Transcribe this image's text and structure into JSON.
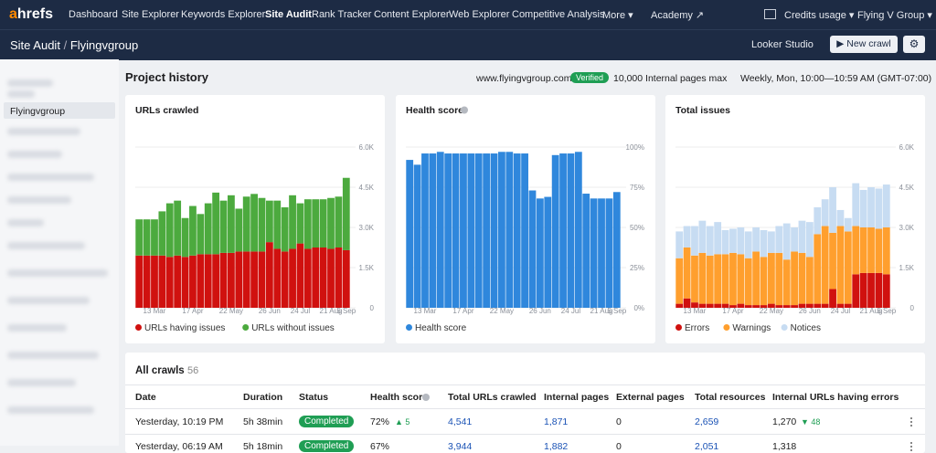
{
  "nav": {
    "logo_a": "a",
    "logo_rest": "hrefs",
    "items": [
      "Dashboard",
      "Site Explorer",
      "Keywords Explorer",
      "Site Audit",
      "Rank Tracker",
      "Content Explorer",
      "Web Explorer",
      "Competitive Analysis",
      "More ▾",
      "Academy ↗"
    ],
    "credits": "Credits usage ▾",
    "account": "Flying V Group ▾"
  },
  "subheader": {
    "section": "Site Audit",
    "separator": "/",
    "project": "Flyingvgroup",
    "looker": "Looker Studio",
    "new_crawl": "▶ New crawl",
    "settings": "⚙"
  },
  "sidebar": {
    "selected": "Flyingvgroup"
  },
  "project": {
    "title": "Project history",
    "url": "www.flyingvgroup.com/",
    "verified": "Verified",
    "limit": "10,000 Internal pages max",
    "schedule": "Weekly, Mon, 10:00—10:59 AM (GMT-07:00)"
  },
  "chart_data": [
    {
      "type": "bar",
      "stacked": true,
      "title": "URLs crawled",
      "categories": [
        null,
        null,
        "13 Mar",
        null,
        null,
        null,
        null,
        "17 Apr",
        null,
        null,
        null,
        null,
        "22 May",
        null,
        null,
        null,
        null,
        "26 Jun",
        null,
        null,
        null,
        "24 Jul",
        null,
        null,
        null,
        "21 Aug",
        null,
        "5 Sep"
      ],
      "series": [
        {
          "name": "URLs having issues",
          "color": "#d0110f",
          "values": [
            1950,
            1950,
            1950,
            1950,
            1900,
            1950,
            1900,
            1950,
            2000,
            2000,
            2000,
            2050,
            2050,
            2100,
            2100,
            2100,
            2100,
            2450,
            2200,
            2100,
            2200,
            2400,
            2200,
            2250,
            2250,
            2200,
            2250,
            2150
          ]
        },
        {
          "name": "URLs without issues",
          "color": "#4caa3e",
          "values": [
            1350,
            1350,
            1350,
            1650,
            2000,
            2050,
            1450,
            1850,
            1500,
            1900,
            2300,
            1950,
            2150,
            1600,
            2050,
            2150,
            2000,
            1550,
            1800,
            1650,
            2000,
            1500,
            1850,
            1800,
            1800,
            1900,
            1900,
            2700
          ]
        }
      ],
      "ylim": [
        0,
        6000
      ],
      "yticks": [
        {
          "value": 0,
          "label": "0"
        },
        {
          "value": 1500,
          "label": "1.5K"
        },
        {
          "value": 3000,
          "label": "3.0K"
        },
        {
          "value": 4500,
          "label": "4.5K"
        },
        {
          "value": 6000,
          "label": "6.0K"
        }
      ],
      "grid": true,
      "legend": "bottom"
    },
    {
      "type": "bar",
      "stacked": true,
      "title": "Health score",
      "categories": [
        null,
        null,
        "13 Mar",
        null,
        null,
        null,
        null,
        "17 Apr",
        null,
        null,
        null,
        null,
        "22 May",
        null,
        null,
        null,
        null,
        "26 Jun",
        null,
        null,
        null,
        "24 Jul",
        null,
        null,
        null,
        "21 Aug",
        null,
        "5 Sep"
      ],
      "series": [
        {
          "name": "Health score",
          "color": "#2f87dc",
          "values": [
            92,
            89,
            96,
            96,
            97,
            96,
            96,
            96,
            96,
            96,
            96,
            96,
            97,
            97,
            96,
            96,
            73,
            68,
            69,
            95,
            96,
            96,
            97,
            71,
            68,
            68,
            68,
            72
          ]
        }
      ],
      "ylim": [
        0,
        100
      ],
      "yticks": [
        {
          "value": 0,
          "label": "0%"
        },
        {
          "value": 25,
          "label": "25%"
        },
        {
          "value": 50,
          "label": "50%"
        },
        {
          "value": 75,
          "label": "75%"
        },
        {
          "value": 100,
          "label": "100%"
        }
      ],
      "grid": true,
      "legend": "bottom"
    },
    {
      "type": "bar",
      "stacked": true,
      "title": "Total issues",
      "categories": [
        null,
        null,
        "13 Mar",
        null,
        null,
        null,
        null,
        "17 Apr",
        null,
        null,
        null,
        null,
        "22 May",
        null,
        null,
        null,
        null,
        "26 Jun",
        null,
        null,
        null,
        "24 Jul",
        null,
        null,
        null,
        "21 Aug",
        null,
        "5 Sep"
      ],
      "series": [
        {
          "name": "Errors",
          "color": "#d0110f",
          "values": [
            150,
            350,
            200,
            150,
            150,
            150,
            150,
            100,
            150,
            100,
            100,
            100,
            150,
            100,
            100,
            100,
            150,
            150,
            150,
            150,
            700,
            150,
            150,
            1250,
            1300,
            1300,
            1300,
            1250
          ]
        },
        {
          "name": "Warnings",
          "color": "#ff9f2e",
          "values": [
            1700,
            1900,
            1750,
            1900,
            1800,
            1850,
            1850,
            1950,
            1850,
            1750,
            2000,
            1800,
            1900,
            1950,
            1700,
            2000,
            1900,
            1750,
            2600,
            2900,
            2100,
            2900,
            2700,
            1800,
            1700,
            1700,
            1650,
            1750
          ]
        },
        {
          "name": "Notices",
          "color": "#c7dcf2",
          "values": [
            1000,
            800,
            1100,
            1200,
            1100,
            1200,
            900,
            900,
            1000,
            1000,
            900,
            1000,
            800,
            1000,
            1350,
            900,
            1200,
            1300,
            1000,
            1000,
            1700,
            600,
            500,
            1600,
            1400,
            1500,
            1500,
            1600
          ]
        }
      ],
      "ylim": [
        0,
        6000
      ],
      "yticks": [
        {
          "value": 0,
          "label": "0"
        },
        {
          "value": 1500,
          "label": "1.5K"
        },
        {
          "value": 3000,
          "label": "3.0K"
        },
        {
          "value": 4500,
          "label": "4.5K"
        },
        {
          "value": 6000,
          "label": "6.0K"
        }
      ],
      "grid": true,
      "legend": "bottom"
    }
  ],
  "crawls": {
    "title": "All crawls",
    "count": "56",
    "columns": [
      "Date",
      "Duration",
      "Status",
      "Health score",
      "Total URLs crawled",
      "Internal pages",
      "External pages",
      "Total resources",
      "Internal URLs having errors"
    ],
    "rows": [
      {
        "date": "Yesterday, 10:19 PM",
        "duration": "5h 38min",
        "status": "Completed",
        "health": "72%",
        "health_change": "▲ 5",
        "urls": "4,541",
        "internal": "1,871",
        "external": "0",
        "resources": "2,659",
        "errors": "1,270",
        "errors_change": "▼ 48"
      },
      {
        "date": "Yesterday, 06:19 AM",
        "duration": "5h 18min",
        "status": "Completed",
        "health": "67%",
        "urls": "3,944",
        "internal": "1,882",
        "external": "0",
        "resources": "2,051",
        "errors": "1,318"
      }
    ]
  }
}
